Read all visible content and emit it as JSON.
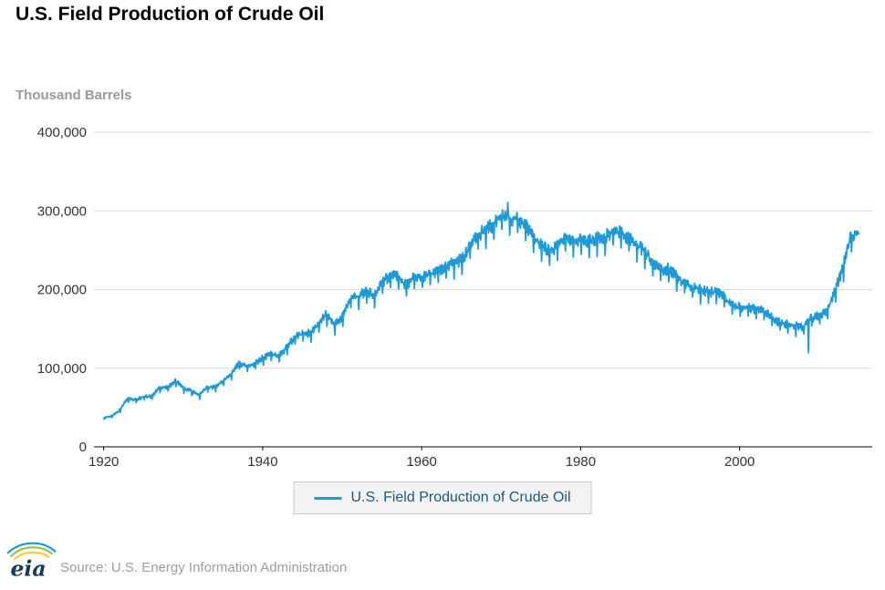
{
  "title": "U.S. Field Production of Crude Oil",
  "units_label": "Thousand Barrels",
  "legend": {
    "label": "U.S. Field Production of Crude Oil"
  },
  "source_label": "Source: U.S. Energy Information Administration",
  "logo": {
    "text": "eia",
    "text_color": "#123a5a",
    "arc_colors": [
      "#0096d7",
      "#8cc640",
      "#ffc62c"
    ]
  },
  "colors": {
    "line": "#1f9ad7",
    "grid": "#d9d9d9",
    "axis": "#000000",
    "tick_text": "#333333",
    "units_text": "#9a9a9a",
    "legend_bg": "#f3f3f3",
    "legend_border": "#c9c9c9",
    "legend_text": "#1b5a80",
    "source_text": "#9e9e9e"
  },
  "chart_data": {
    "type": "line",
    "title": "U.S. Field Production of Crude Oil",
    "xlabel": "",
    "ylabel": "Thousand Barrels",
    "grid": true,
    "legend_position": "bottom",
    "xlim": [
      1919,
      2016
    ],
    "ylim": [
      0,
      400000
    ],
    "xticks": [
      1920,
      1940,
      1960,
      1980,
      2000
    ],
    "yticks": [
      {
        "value": 0,
        "label": "0"
      },
      {
        "value": 100000,
        "label": "100,000"
      },
      {
        "value": 200000,
        "label": "200,000"
      },
      {
        "value": 300000,
        "label": "300,000"
      },
      {
        "value": 400000,
        "label": "400,000"
      }
    ],
    "frequency": "monthly series shown; annual average anchor values listed below (thousand barrels per month)",
    "series": [
      {
        "name": "U.S. Field Production of Crude Oil",
        "color": "#1f9ad7",
        "monthly_noise_fraction": 0.018,
        "seasonal_days_in_month": true,
        "x": [
          1920,
          1921,
          1922,
          1923,
          1924,
          1925,
          1926,
          1927,
          1928,
          1929,
          1930,
          1931,
          1932,
          1933,
          1934,
          1935,
          1936,
          1937,
          1938,
          1939,
          1940,
          1941,
          1942,
          1943,
          1944,
          1945,
          1946,
          1947,
          1948,
          1949,
          1950,
          1951,
          1952,
          1953,
          1954,
          1955,
          1956,
          1957,
          1958,
          1959,
          1960,
          1961,
          1962,
          1963,
          1964,
          1965,
          1966,
          1967,
          1968,
          1969,
          1970,
          1971,
          1972,
          1973,
          1974,
          1975,
          1976,
          1977,
          1978,
          1979,
          1980,
          1981,
          1982,
          1983,
          1984,
          1985,
          1986,
          1987,
          1988,
          1989,
          1990,
          1991,
          1992,
          1993,
          1994,
          1995,
          1996,
          1997,
          1998,
          1999,
          2000,
          2001,
          2002,
          2003,
          2004,
          2005,
          2006,
          2007,
          2008,
          2009,
          2010,
          2011,
          2012,
          2013,
          2014,
          2015
        ],
        "values": [
          37000,
          39300,
          46500,
          61000,
          59500,
          63600,
          64200,
          75100,
          75100,
          83900,
          74800,
          70900,
          65400,
          75500,
          75700,
          83100,
          91500,
          106600,
          101200,
          105400,
          112800,
          116900,
          115600,
          125500,
          139800,
          142800,
          144500,
          154700,
          168400,
          153500,
          164500,
          187300,
          190800,
          196400,
          192900,
          207000,
          218100,
          218100,
          204100,
          214500,
          214600,
          218500,
          223000,
          228900,
          232300,
          237400,
          252500,
          268500,
          275300,
          281000,
          293100,
          289300,
          289200,
          280700,
          267800,
          255900,
          248000,
          252400,
          264800,
          260300,
          262600,
          261700,
          264700,
          266200,
          271900,
          272900,
          264900,
          255600,
          249700,
          233500,
          223900,
          225600,
          218100,
          208200,
          202600,
          199500,
          196600,
          196200,
          190200,
          178900,
          177100,
          176400,
          174800,
          172800,
          164800,
          157500,
          155200,
          154000,
          152100,
          162800,
          166600,
          171900,
          197600,
          227200,
          266400,
          270000
        ],
        "anomalies": [
          {
            "x": 1970.83,
            "value": 310500
          },
          {
            "x": 2008.67,
            "value": 119500
          }
        ]
      }
    ]
  }
}
